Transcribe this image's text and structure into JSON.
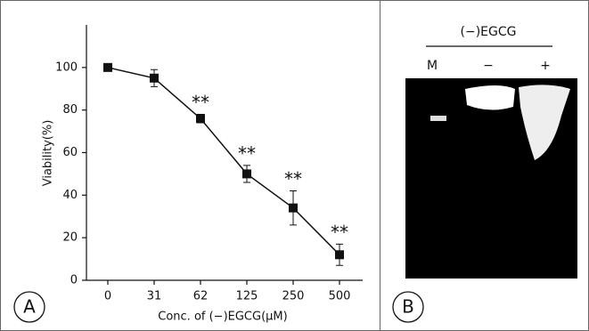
{
  "chart_data": {
    "type": "line",
    "panel_label": "A",
    "categories": [
      "0",
      "31",
      "62",
      "125",
      "250",
      "500"
    ],
    "values": [
      100,
      95,
      76,
      50,
      34,
      12
    ],
    "errors": [
      1,
      4,
      2,
      4,
      8,
      5
    ],
    "significance": [
      null,
      null,
      "**",
      "**",
      "**",
      "**"
    ],
    "color": "#111111",
    "ylim": [
      0,
      120
    ],
    "yticks": [
      0,
      20,
      40,
      60,
      80,
      100
    ],
    "ylabel": "Viability(%)",
    "xlabel": "Conc. of (−)EGCG(μM)"
  },
  "gel": {
    "panel_label": "B",
    "title": "(−)EGCG",
    "lanes": [
      "M",
      "−",
      "+"
    ]
  }
}
